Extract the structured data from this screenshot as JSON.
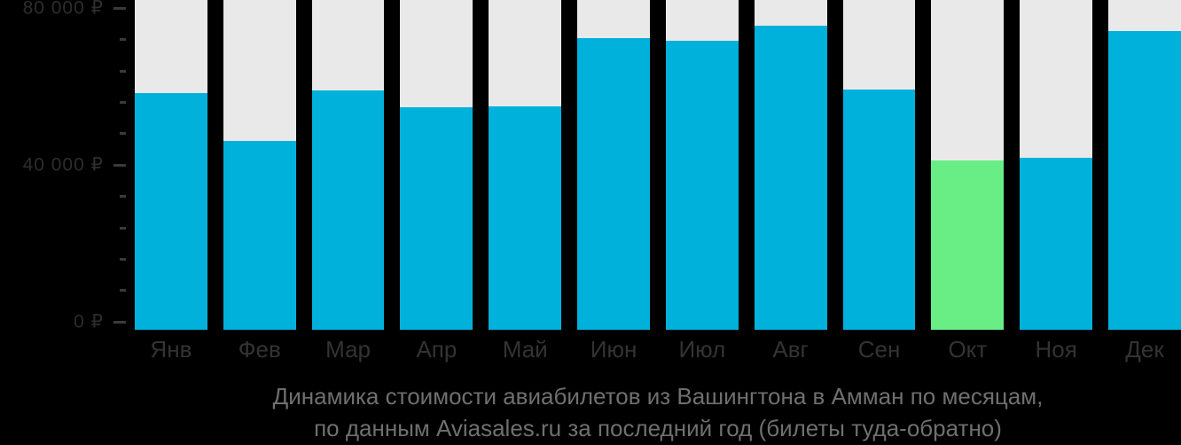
{
  "chart_data": {
    "type": "bar",
    "title": "Динамика стоимости авиабилетов из Вашингтона в Амман по месяцам,",
    "subtitle": "по данным Aviasales.ru за последний год (билеты туда-обратно)",
    "categories": [
      "Янв",
      "Фев",
      "Мар",
      "Апр",
      "Май",
      "Июн",
      "Июл",
      "Авг",
      "Сен",
      "Окт",
      "Ноя",
      "Дек"
    ],
    "values": [
      58300,
      46100,
      59000,
      54800,
      55100,
      72400,
      71700,
      75600,
      59400,
      41200,
      41800,
      74300
    ],
    "unit": "₽",
    "ylim": [
      0,
      80000
    ],
    "yticks": [
      {
        "value": 80000,
        "label": "80 000 ₽"
      },
      {
        "value": 40000,
        "label": "40 000 ₽"
      },
      {
        "value": 0,
        "label": "0 ₽"
      }
    ],
    "minor_tick_step": 8000,
    "highlight_index": 9,
    "legend": "none",
    "grid": false,
    "colors": {
      "bar": "#00b1dc",
      "highlight": "#69ee85",
      "column_background": "#e9e9e9",
      "axis_label_text": "#2d2d2d",
      "month_label_text": "#333333",
      "tick_mark": "#3a3a3a",
      "caption_text": "#6f6f6f",
      "background": "#000000"
    }
  }
}
